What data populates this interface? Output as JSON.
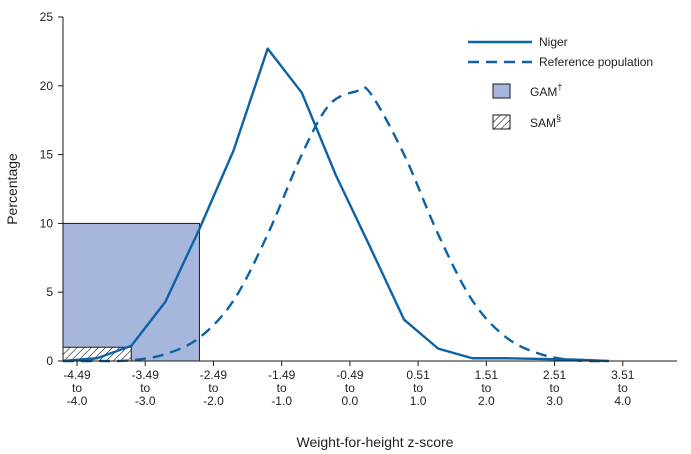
{
  "colors": {
    "line": "#0b63a6",
    "gam_fill": "#a7b6dc",
    "gam_stroke": "#1a1a1a",
    "axis": "#1a1a1a"
  },
  "chart_data": {
    "type": "line",
    "title": "",
    "xlabel": "Weight-for-height z-score",
    "ylabel": "Percentage",
    "xlim": [
      -4.5,
      4.5
    ],
    "ylim": [
      0,
      25
    ],
    "y_ticks": [
      0,
      5,
      10,
      15,
      20,
      25
    ],
    "grid": false,
    "legend_position": "top-right",
    "x_tick_labels": [
      {
        "x": -4.5,
        "lines": [
          "-4.49",
          "to",
          "-4.0"
        ]
      },
      {
        "x": -3.5,
        "lines": [
          "-3.49",
          "to",
          "-3.0"
        ]
      },
      {
        "x": -2.5,
        "lines": [
          "-2.49",
          "to",
          "-2.0"
        ]
      },
      {
        "x": -1.5,
        "lines": [
          "-1.49",
          "to",
          "-1.0"
        ]
      },
      {
        "x": -0.5,
        "lines": [
          "-0.49",
          "to",
          "0.0"
        ]
      },
      {
        "x": 0.5,
        "lines": [
          "0.51",
          "to",
          "1.0"
        ]
      },
      {
        "x": 1.5,
        "lines": [
          "1.51",
          "to",
          "2.0"
        ]
      },
      {
        "x": 2.5,
        "lines": [
          "2.51",
          "to",
          "3.0"
        ]
      },
      {
        "x": 3.5,
        "lines": [
          "3.51",
          "to",
          "4.0"
        ]
      }
    ],
    "series": [
      {
        "name": "Niger",
        "style": "solid",
        "points": [
          [
            -4.5,
            0.0
          ],
          [
            -4.0,
            0.2
          ],
          [
            -3.5,
            1.1
          ],
          [
            -3.0,
            4.3
          ],
          [
            -2.5,
            9.6
          ],
          [
            -2.0,
            15.3
          ],
          [
            -1.5,
            22.7
          ],
          [
            -1.0,
            19.5
          ],
          [
            -0.5,
            13.5
          ],
          [
            0.0,
            8.3
          ],
          [
            0.5,
            3.0
          ],
          [
            1.0,
            0.9
          ],
          [
            1.5,
            0.2
          ],
          [
            2.0,
            0.2
          ],
          [
            2.5,
            0.15
          ],
          [
            3.0,
            0.1
          ],
          [
            3.5,
            0.0
          ]
        ]
      },
      {
        "name": "Reference population",
        "style": "dashed",
        "points": [
          [
            -4.5,
            0.0
          ],
          [
            -4.0,
            0.0
          ],
          [
            -3.5,
            0.05
          ],
          [
            -3.0,
            0.5
          ],
          [
            -2.5,
            1.7
          ],
          [
            -2.0,
            4.4
          ],
          [
            -1.5,
            9.2
          ],
          [
            -1.0,
            15.0
          ],
          [
            -0.6,
            18.6
          ],
          [
            -0.2,
            19.6
          ],
          [
            0.0,
            19.5
          ],
          [
            0.5,
            15.0
          ],
          [
            1.0,
            9.2
          ],
          [
            1.5,
            4.4
          ],
          [
            2.0,
            1.7
          ],
          [
            2.5,
            0.5
          ],
          [
            3.0,
            0.05
          ],
          [
            3.5,
            0.0
          ]
        ]
      }
    ],
    "regions": [
      {
        "name": "GAM",
        "marker": "†",
        "pattern": "solid",
        "x0": -4.5,
        "x1": -2.5,
        "y": 10
      },
      {
        "name": "SAM",
        "marker": "§",
        "pattern": "hatched",
        "x0": -4.5,
        "x1": -3.5,
        "y": 1
      }
    ]
  }
}
